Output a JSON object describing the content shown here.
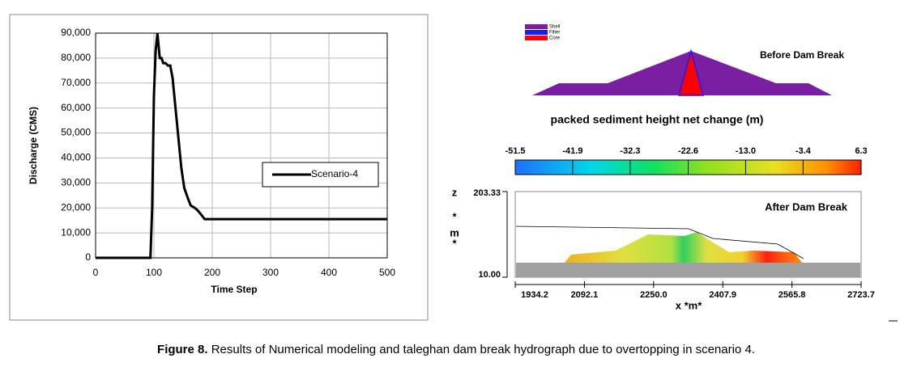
{
  "chart_data": {
    "type": "line",
    "x_label": "Time Step",
    "y_label": "Discharge (CMS)",
    "x": [
      0,
      94,
      97,
      100,
      103,
      106,
      108,
      110,
      113,
      116,
      120,
      124,
      128,
      132,
      137,
      142,
      147,
      152,
      158,
      163,
      170,
      175,
      182,
      187,
      500
    ],
    "series": [
      {
        "name": "Scenario-4",
        "color": "#000000",
        "values": [
          0,
          0,
          20000,
          65000,
          83000,
          90000,
          85000,
          80000,
          80000,
          78000,
          78000,
          77000,
          77000,
          72000,
          60000,
          48000,
          36000,
          28000,
          24000,
          21000,
          20000,
          19000,
          17000,
          15500,
          15500
        ]
      }
    ],
    "xlim": [
      0,
      500
    ],
    "xticks": [
      0,
      100,
      200,
      300,
      400,
      500
    ],
    "ylim": [
      0,
      90000
    ],
    "yticks": [
      0,
      {
        "value": 10000,
        "label": "10,000"
      },
      {
        "value": 20000,
        "label": "20,000"
      },
      {
        "value": 30000,
        "label": "30,000"
      },
      {
        "value": 40000,
        "label": "40,000"
      },
      {
        "value": 50000,
        "label": "50,000"
      },
      {
        "value": 60000,
        "label": "60,000"
      },
      {
        "value": 70000,
        "label": "70,000"
      },
      {
        "value": 80000,
        "label": "80,000"
      },
      {
        "value": 90000,
        "label": "90,000"
      }
    ],
    "grid": true,
    "legend": "right"
  },
  "panel_right": {
    "materials": [
      {
        "name": "Shell",
        "color": "#7a1fa2"
      },
      {
        "name": "Filter",
        "color": "#1a1aff"
      },
      {
        "name": "Core",
        "color": "#ff0000"
      }
    ],
    "before_label": "Before Dam Break",
    "colorbar_title": "packed sediment height net change (m)",
    "colorbar_ticks": [
      -51.5,
      -41.9,
      -32.3,
      -22.6,
      {
        "value": -13,
        "label": "-13.0"
      },
      -3.4,
      6.3
    ],
    "after_label": "After Dam Break",
    "z_label": [
      "z",
      "*",
      "m",
      "*"
    ],
    "z_ticks": [
      203.33,
      {
        "value": 10,
        "label": "10.00"
      }
    ],
    "x_label": "x *m*",
    "x_ticks": [
      1934.2,
      2092.1,
      {
        "value": 2250,
        "label": "2250.0"
      },
      2407.9,
      2565.8,
      2723.7
    ]
  },
  "caption": {
    "label": "Figure 8.",
    "text": " Results of Numerical modeling and taleghan dam break hydrograph due to overtopping in scenario 4."
  }
}
